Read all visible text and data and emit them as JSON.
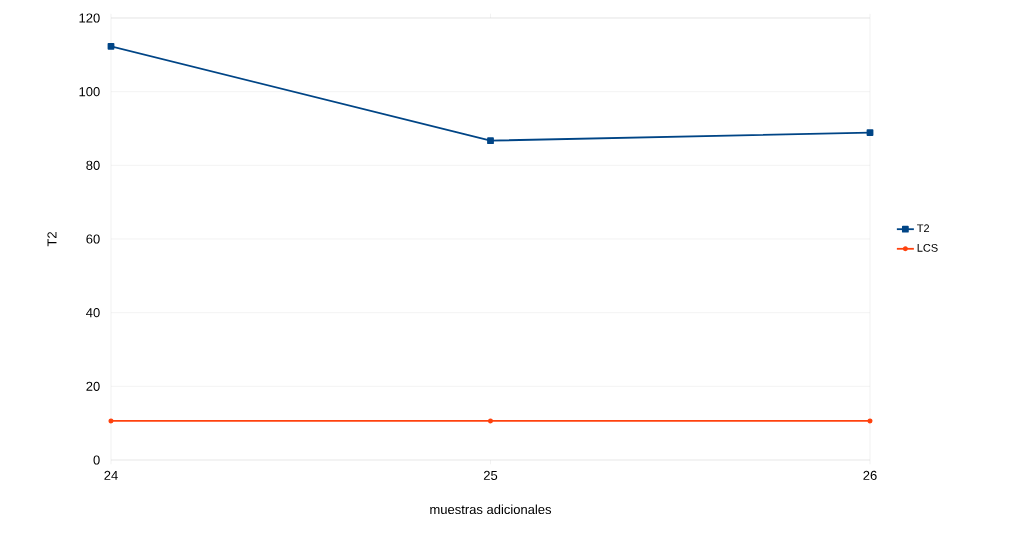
{
  "chart_data": {
    "type": "line",
    "xlabel": "muestras adicionales",
    "ylabel": "T2",
    "x": [
      24,
      25,
      26
    ],
    "series": [
      {
        "name": "T2",
        "color": "#004586",
        "values": [
          112.3,
          86.7,
          88.9
        ],
        "marker": "square"
      },
      {
        "name": "LCS",
        "color": "#ff420e",
        "values": [
          10.6,
          10.6,
          10.6
        ],
        "marker": "circle"
      }
    ],
    "xlim": [
      24,
      26
    ],
    "xticks": [
      24,
      25,
      26
    ],
    "ylim": [
      0,
      120
    ],
    "yticks": [
      0,
      20,
      40,
      60,
      80,
      100,
      120
    ],
    "grid": "y",
    "legend": "right"
  }
}
